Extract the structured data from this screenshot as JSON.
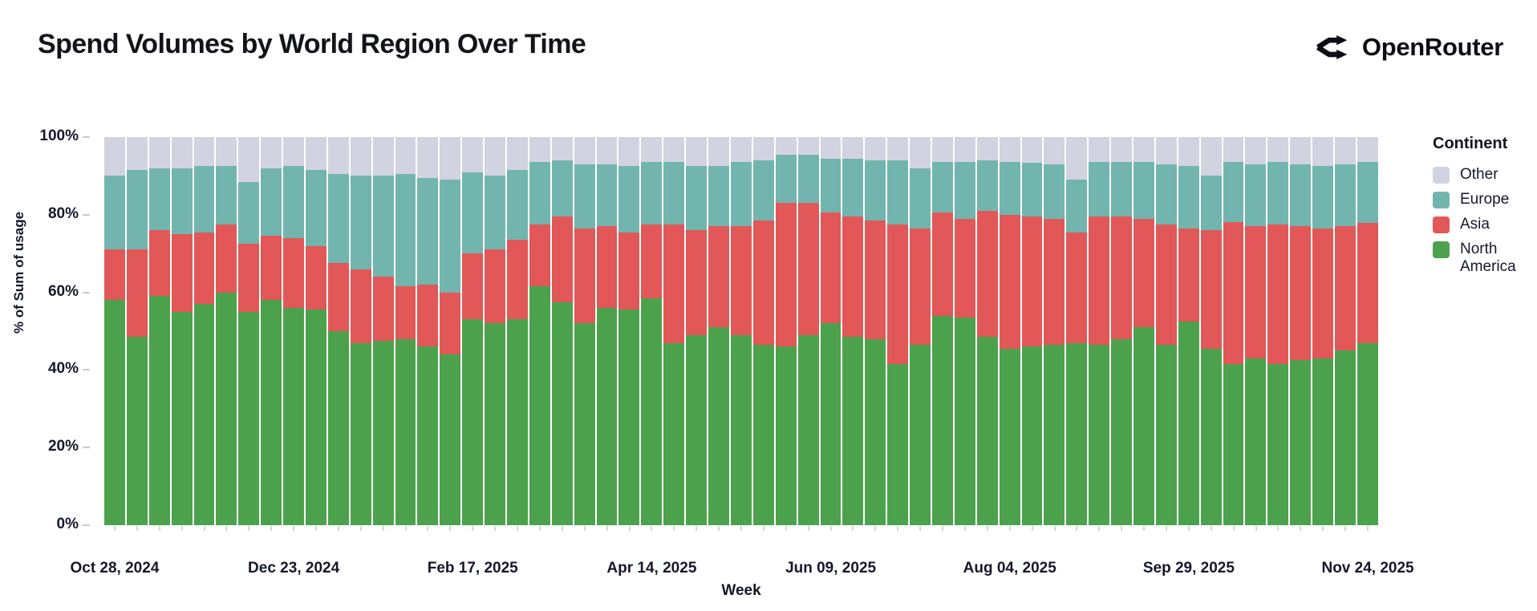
{
  "header": {
    "title": "Spend Volumes by World Region Over Time",
    "brand": "OpenRouter"
  },
  "legend": {
    "title": "Continent",
    "items": [
      {
        "label": "Other",
        "color": "#d2d3e0"
      },
      {
        "label": "Europe",
        "color": "#72b5ae"
      },
      {
        "label": "Asia",
        "color": "#e25758"
      },
      {
        "label": "North America",
        "color": "#4ca24c"
      }
    ]
  },
  "chart_data": {
    "type": "bar",
    "stacked": true,
    "percent": true,
    "title": "Spend Volumes by World Region Over Time",
    "xlabel": "Week",
    "ylabel": "% of Sum of usage",
    "ylim": [
      0,
      100
    ],
    "grid": false,
    "legend_position": "right",
    "y_tick_labels": [
      "0%",
      "20%",
      "40%",
      "60%",
      "80%",
      "100%"
    ],
    "x": [
      "Oct 28, 2024",
      "Nov 04, 2024",
      "Nov 11, 2024",
      "Nov 18, 2024",
      "Nov 25, 2024",
      "Dec 02, 2024",
      "Dec 09, 2024",
      "Dec 16, 2024",
      "Dec 23, 2024",
      "Dec 30, 2024",
      "Jan 06, 2025",
      "Jan 13, 2025",
      "Jan 20, 2025",
      "Jan 27, 2025",
      "Feb 03, 2025",
      "Feb 10, 2025",
      "Feb 17, 2025",
      "Feb 24, 2025",
      "Mar 03, 2025",
      "Mar 10, 2025",
      "Mar 17, 2025",
      "Mar 24, 2025",
      "Mar 31, 2025",
      "Apr 07, 2025",
      "Apr 14, 2025",
      "Apr 21, 2025",
      "Apr 28, 2025",
      "May 05, 2025",
      "May 12, 2025",
      "May 19, 2025",
      "May 26, 2025",
      "Jun 02, 2025",
      "Jun 09, 2025",
      "Jun 16, 2025",
      "Jun 23, 2025",
      "Jun 30, 2025",
      "Jul 07, 2025",
      "Jul 14, 2025",
      "Jul 21, 2025",
      "Jul 28, 2025",
      "Aug 04, 2025",
      "Aug 11, 2025",
      "Aug 18, 2025",
      "Aug 25, 2025",
      "Sep 01, 2025",
      "Sep 08, 2025",
      "Sep 15, 2025",
      "Sep 22, 2025",
      "Sep 29, 2025",
      "Oct 06, 2025",
      "Oct 13, 2025",
      "Oct 20, 2025",
      "Oct 27, 2025",
      "Nov 03, 2025",
      "Nov 10, 2025",
      "Nov 17, 2025",
      "Nov 24, 2025"
    ],
    "x_tick_indices": [
      0,
      8,
      16,
      24,
      32,
      40,
      48,
      56
    ],
    "x_tick_labels": [
      "Oct 28, 2024",
      "Dec 23, 2024",
      "Feb 17, 2025",
      "Apr 14, 2025",
      "Jun 09, 2025",
      "Aug 04, 2025",
      "Sep 29, 2025",
      "Nov 24, 2025"
    ],
    "series": [
      {
        "name": "North America",
        "color": "#4ca24c",
        "values": [
          58,
          48.5,
          59,
          55,
          57,
          60,
          55,
          58,
          56,
          55.5,
          50,
          47,
          47.5,
          48,
          46,
          44,
          53,
          52,
          53,
          61.5,
          57.5,
          52,
          56,
          55.5,
          58.5,
          47,
          49,
          51,
          49,
          46.5,
          46,
          49,
          52,
          48.5,
          48,
          41.5,
          46.5,
          54,
          53.5,
          48.5,
          45.5,
          46,
          46.5,
          47,
          46.5,
          48,
          51,
          46.5,
          52.5,
          45.5,
          41.5,
          43,
          41.5,
          42.5,
          43,
          45,
          47
        ]
      },
      {
        "name": "Asia",
        "color": "#e25758",
        "values": [
          13,
          22.5,
          17,
          20,
          18.5,
          17.5,
          17.5,
          16.5,
          18,
          16.5,
          17.5,
          19,
          16.5,
          13.5,
          16,
          16,
          17,
          19,
          20.5,
          16,
          22,
          24.5,
          21,
          20,
          19,
          30.5,
          27,
          26,
          28,
          32,
          37,
          34,
          28.5,
          31,
          30.5,
          36,
          30,
          26.5,
          25.5,
          32.5,
          34.5,
          33.5,
          32.5,
          28.5,
          33,
          31.5,
          28,
          31,
          24,
          30.5,
          36.5,
          34,
          36,
          34.5,
          33.5,
          32,
          31
        ]
      },
      {
        "name": "Europe",
        "color": "#72b5ae",
        "values": [
          19,
          20.5,
          16,
          17,
          17,
          15,
          16,
          17.5,
          18.5,
          19.5,
          23,
          24,
          26,
          29,
          27.5,
          29,
          21,
          19,
          18,
          16,
          14.5,
          16.5,
          16,
          17,
          16,
          16,
          16.5,
          15.5,
          16.5,
          15.5,
          12.5,
          12.5,
          14,
          15,
          15.5,
          16.5,
          15.5,
          13,
          14.5,
          13,
          13.5,
          14,
          14,
          13.5,
          14,
          14,
          14.5,
          15.5,
          16,
          14,
          15.5,
          16,
          16,
          16,
          16,
          16,
          15.5
        ]
      },
      {
        "name": "Other",
        "color": "#d2d3e0",
        "values": [
          10,
          8.5,
          8,
          8,
          7.5,
          7.5,
          11.5,
          8,
          7.5,
          8.5,
          9.5,
          10,
          10,
          9.5,
          10.5,
          11,
          9,
          10,
          8.5,
          6.5,
          6,
          7,
          7,
          7.5,
          6.5,
          6.5,
          7.5,
          7.5,
          6.5,
          6,
          4.5,
          4.5,
          5.5,
          5.5,
          6,
          6,
          8,
          6.5,
          6.5,
          6,
          6.5,
          6.5,
          7,
          11,
          6.5,
          6.5,
          6.5,
          7,
          7.5,
          10,
          6.5,
          7,
          6.5,
          7,
          7.5,
          7,
          6.5
        ]
      }
    ]
  }
}
